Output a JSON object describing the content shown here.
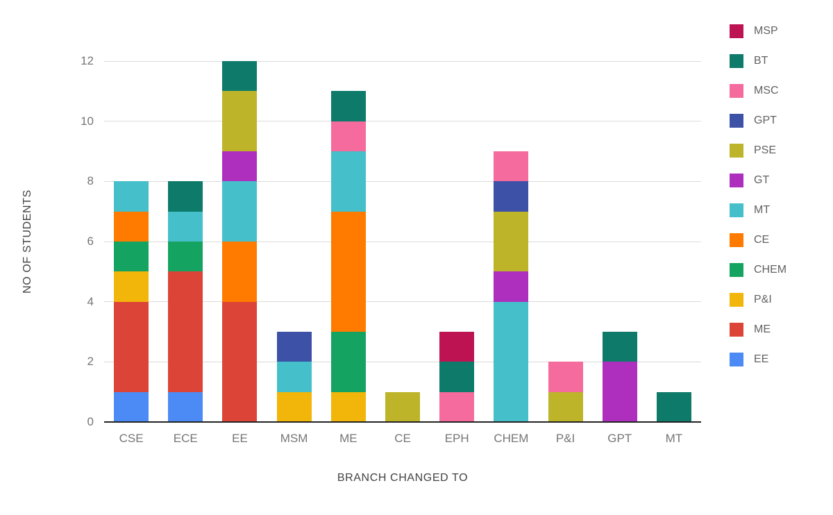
{
  "chart_data": {
    "type": "bar",
    "stacked": true,
    "title": "",
    "xlabel": "BRANCH CHANGED TO",
    "ylabel": "NO OF STUDENTS",
    "ylim": [
      0,
      12
    ],
    "yticks": [
      0,
      2,
      4,
      6,
      8,
      10,
      12
    ],
    "grid": true,
    "legend_position": "right",
    "legend_order_top_to_bottom": [
      "MSP",
      "BT",
      "MSC",
      "GPT",
      "PSE",
      "GT",
      "MT",
      "CE",
      "CHEM",
      "P&I",
      "ME",
      "EE"
    ],
    "categories": [
      "CSE",
      "ECE",
      "EE",
      "MSM",
      "ME",
      "CE",
      "EPH",
      "CHEM",
      "P&I",
      "GPT",
      "MT"
    ],
    "series": [
      {
        "name": "EE",
        "color": "#4C8BF5",
        "values": [
          1,
          1,
          0,
          0,
          0,
          0,
          0,
          0,
          0,
          0,
          0
        ]
      },
      {
        "name": "ME",
        "color": "#DB4437",
        "values": [
          3,
          4,
          4,
          0,
          0,
          0,
          0,
          0,
          0,
          0,
          0
        ]
      },
      {
        "name": "P&I",
        "color": "#F2B50A",
        "values": [
          1,
          0,
          0,
          1,
          1,
          0,
          0,
          0,
          0,
          0,
          0
        ]
      },
      {
        "name": "CHEM",
        "color": "#15A361",
        "values": [
          1,
          1,
          0,
          0,
          2,
          0,
          0,
          0,
          0,
          0,
          0
        ]
      },
      {
        "name": "CE",
        "color": "#FF7B00",
        "values": [
          1,
          0,
          2,
          0,
          4,
          0,
          0,
          0,
          0,
          0,
          0
        ]
      },
      {
        "name": "MT",
        "color": "#45BFC9",
        "values": [
          1,
          1,
          2,
          1,
          2,
          0,
          0,
          4,
          0,
          0,
          0
        ]
      },
      {
        "name": "GT",
        "color": "#AE2FBE",
        "values": [
          0,
          0,
          1,
          0,
          0,
          0,
          0,
          1,
          0,
          2,
          0
        ]
      },
      {
        "name": "PSE",
        "color": "#BDB429",
        "values": [
          0,
          0,
          2,
          0,
          0,
          1,
          0,
          2,
          1,
          0,
          0
        ]
      },
      {
        "name": "GPT",
        "color": "#3D51A6",
        "values": [
          0,
          0,
          0,
          1,
          0,
          0,
          0,
          1,
          0,
          0,
          0
        ]
      },
      {
        "name": "MSC",
        "color": "#F56B9D",
        "values": [
          0,
          0,
          0,
          0,
          1,
          0,
          1,
          1,
          1,
          0,
          0
        ]
      },
      {
        "name": "BT",
        "color": "#0D7A6A",
        "values": [
          0,
          1,
          1,
          0,
          1,
          0,
          1,
          0,
          0,
          1,
          1
        ]
      },
      {
        "name": "MSP",
        "color": "#BD1353",
        "values": [
          0,
          0,
          0,
          0,
          0,
          0,
          1,
          0,
          0,
          0,
          0
        ]
      }
    ]
  }
}
